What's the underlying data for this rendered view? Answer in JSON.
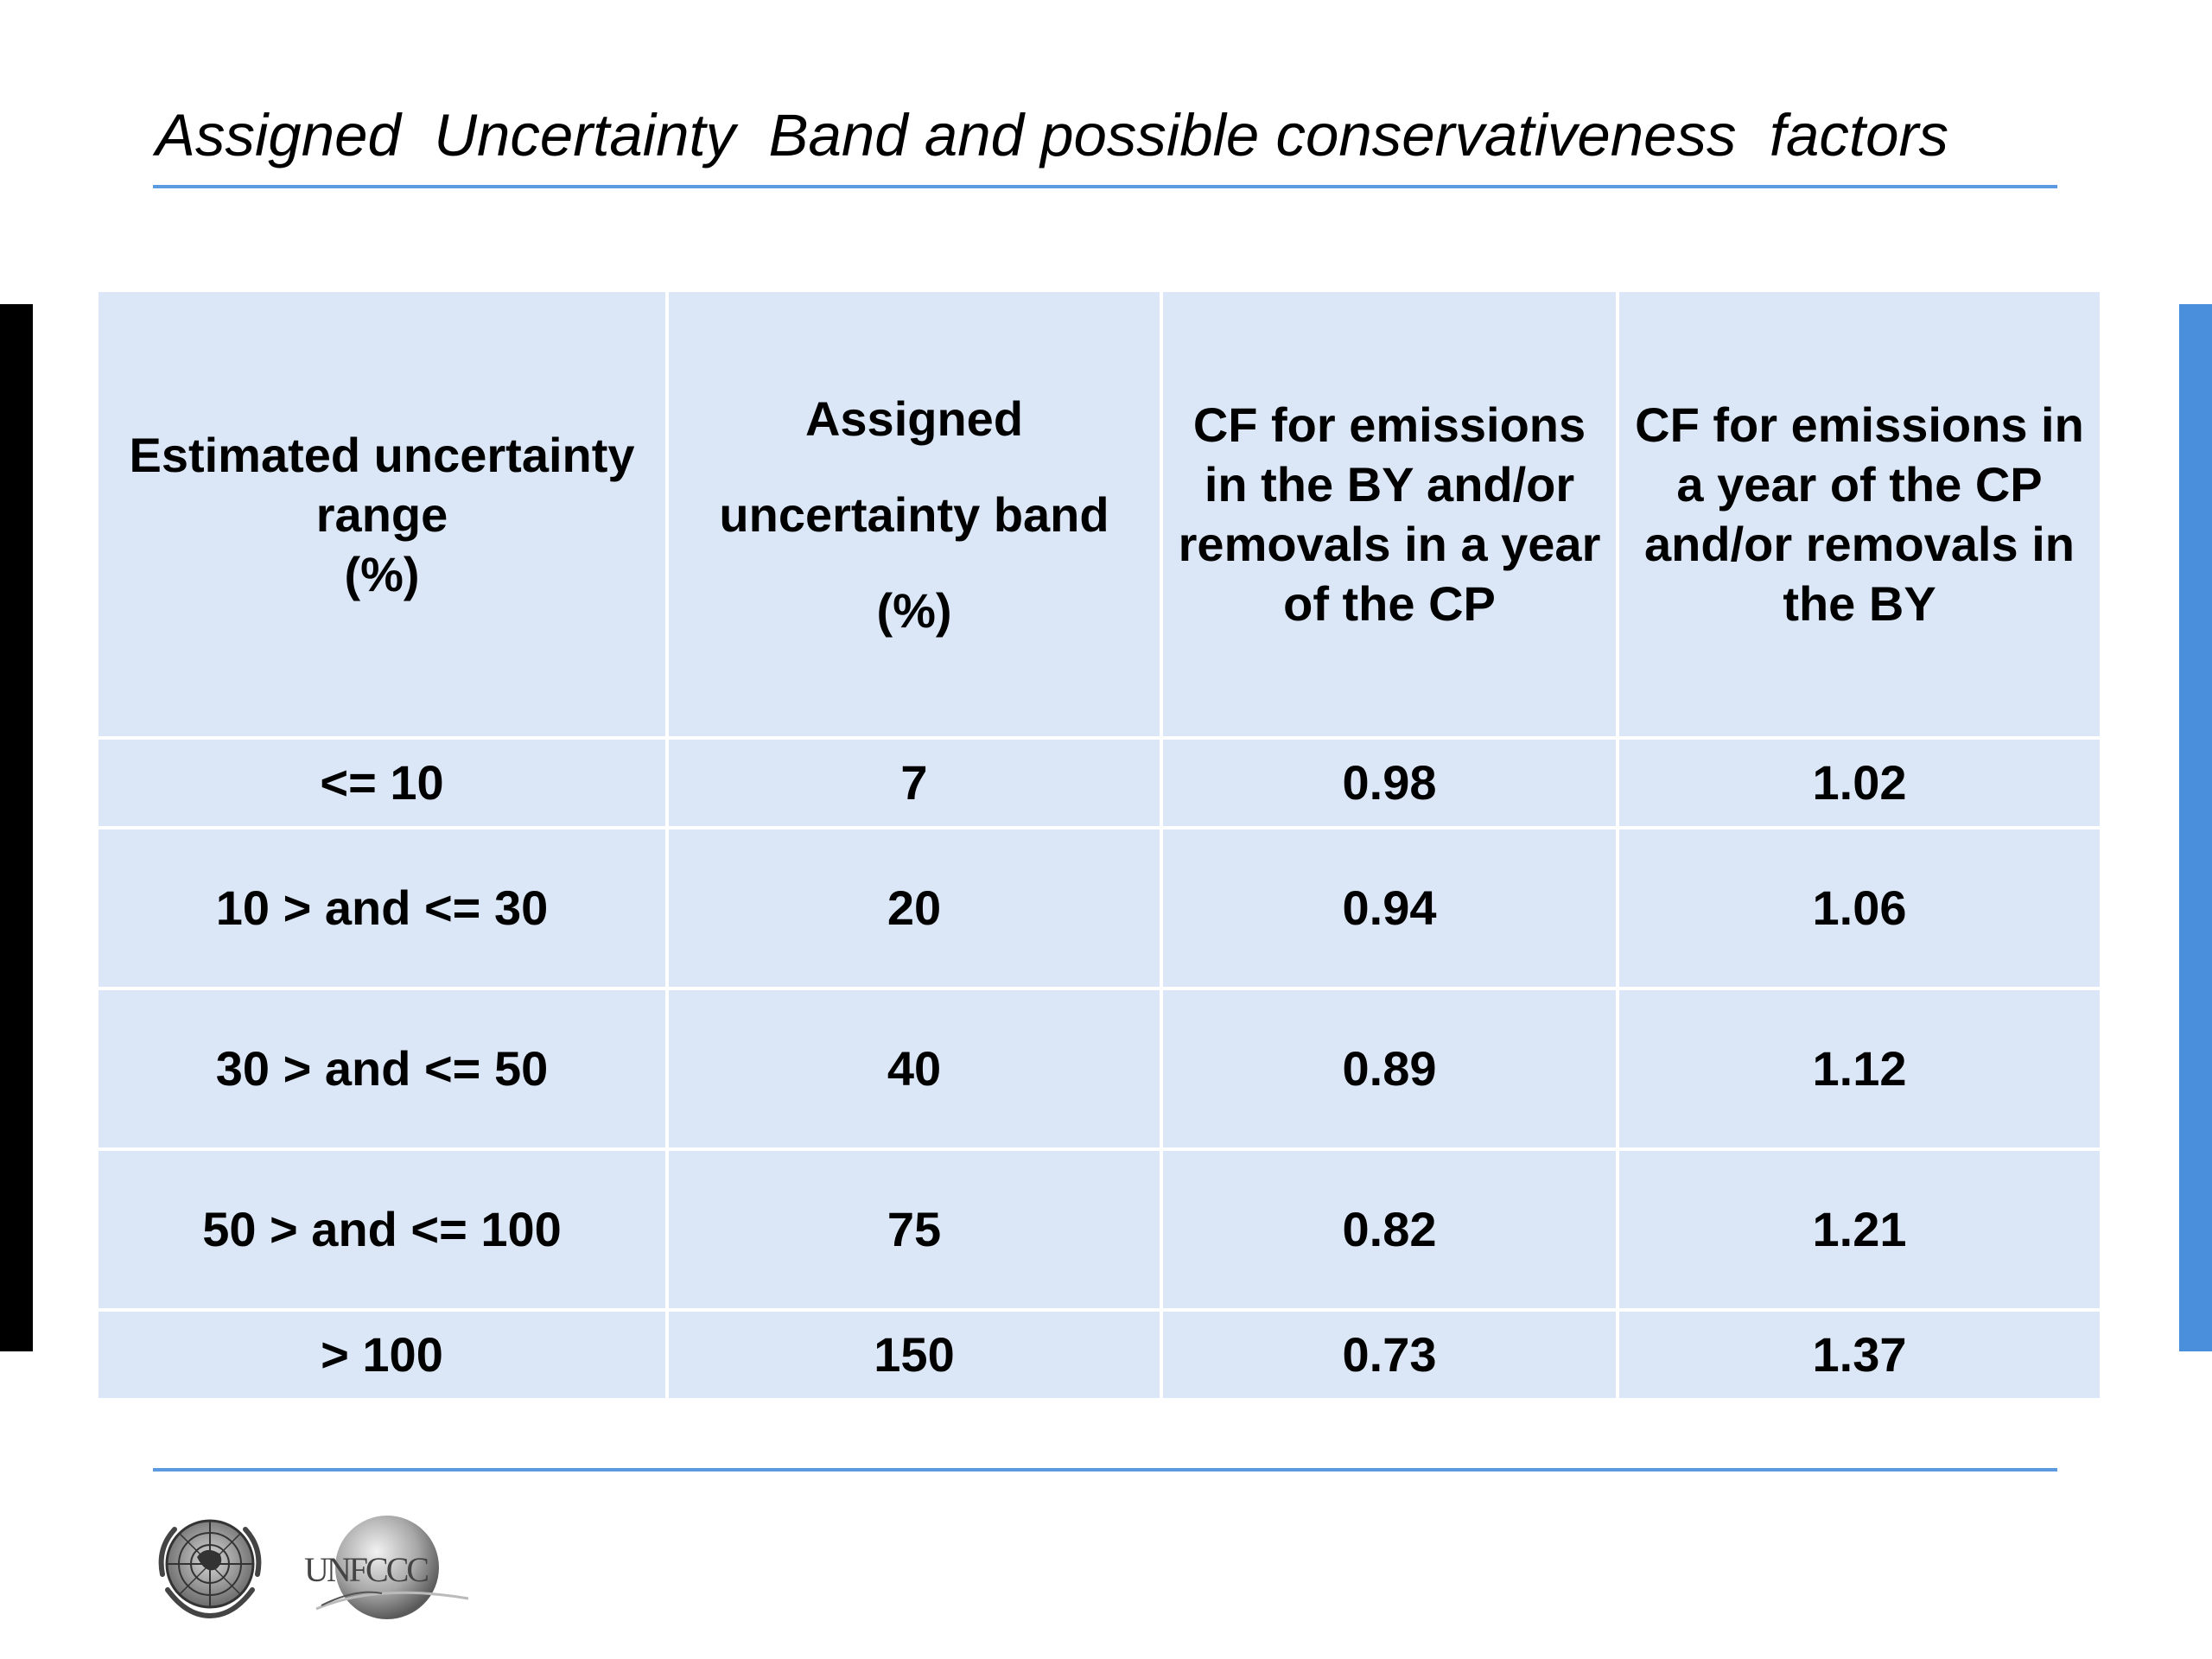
{
  "slide": {
    "title": "Assigned  Uncertainty  Band and possible conservativeness  factors"
  },
  "table": {
    "headers": [
      "Estimated uncertainty\nrange\n(%)",
      "Assigned\nuncertainty band\n(%)",
      "CF for emissions\nin the BY and/or\nremovals in a year\nof the  CP",
      "CF for emissions in\na year of the CP\nand/or removals in\nthe BY"
    ],
    "rows": [
      [
        "<= 10",
        "7",
        "0.98",
        "1.02"
      ],
      [
        "10 > and <= 30",
        "20",
        "0.94",
        "1.06"
      ],
      [
        "30  > and <=  50",
        "40",
        "0.89",
        "1.12"
      ],
      [
        "50  > and <=  100",
        "75",
        "0.82",
        "1.21"
      ],
      [
        "> 100",
        "150",
        "0.73",
        "1.37"
      ]
    ]
  },
  "footer": {
    "logo_un": "UN",
    "logo_unfccc": "UNFCCC"
  },
  "colors": {
    "rule": "#5b9ae0",
    "table_fill": "#dbe7f6",
    "left_bar": "#000000",
    "right_bar": "#4a8fdc"
  }
}
